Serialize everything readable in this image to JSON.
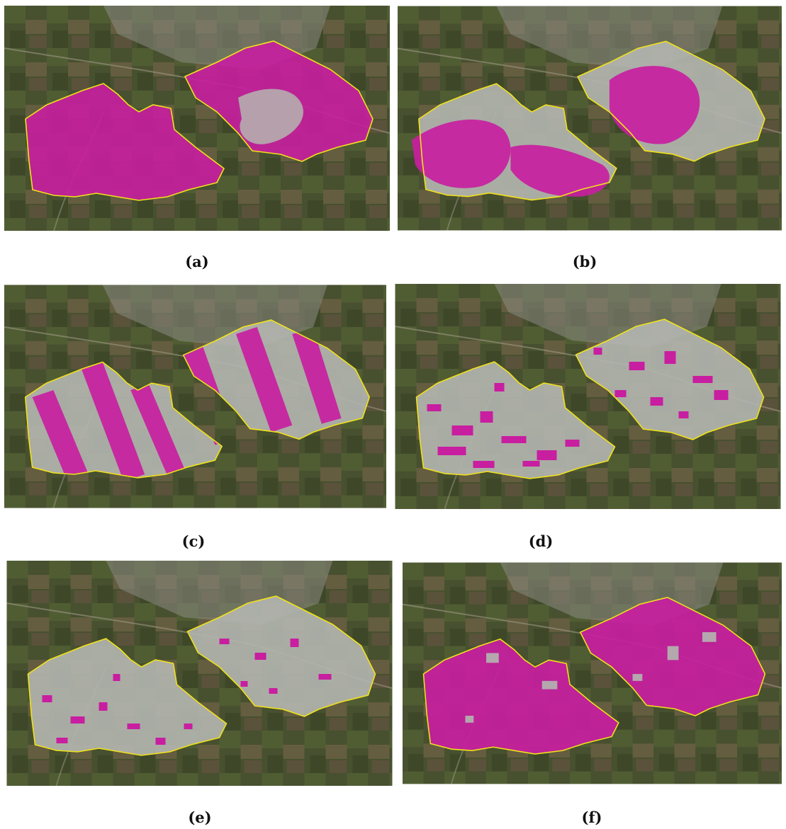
{
  "figure": {
    "panels": [
      {
        "id": "a",
        "caption": "(a)",
        "purple_coverage": "high"
      },
      {
        "id": "b",
        "caption": "(b)",
        "purple_coverage": "medium-blobs"
      },
      {
        "id": "c",
        "caption": "(c)",
        "purple_coverage": "diagonal-stripes"
      },
      {
        "id": "d",
        "caption": "(d)",
        "purple_coverage": "scattered-speckle"
      },
      {
        "id": "e",
        "caption": "(e)",
        "purple_coverage": "sparse-speckle"
      },
      {
        "id": "f",
        "caption": "(f)",
        "purple_coverage": "high-with-gray-patches"
      }
    ]
  },
  "colors": {
    "segmentation": "#c81ea0",
    "unclassified": "#b4b6b0",
    "boundary": "#f0e21a",
    "terrain_dark": "#3b4629",
    "terrain_mid": "#5a6139",
    "urban": "#8a8a82"
  }
}
